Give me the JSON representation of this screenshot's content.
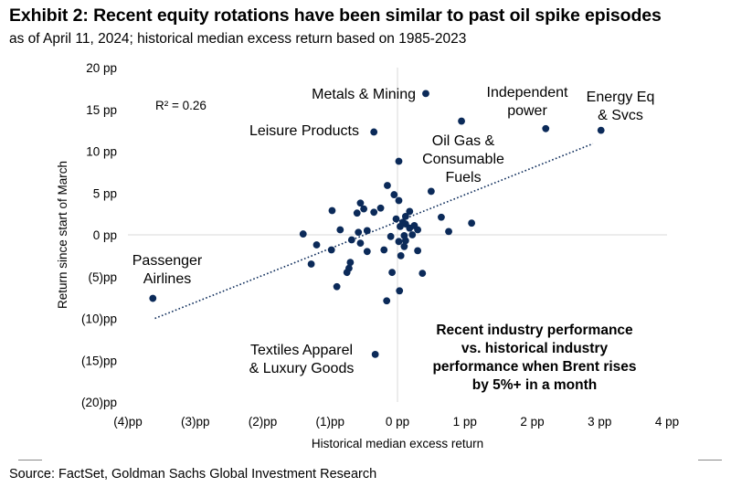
{
  "header": {
    "title": "Exhibit 2: Recent equity rotations have been similar to past oil spike episodes",
    "subtitle": "as of April 11, 2024; historical median excess return based on 1985-2023"
  },
  "footer": {
    "source": "Source: FactSet, Goldman Sachs Global Investment Research"
  },
  "colors": {
    "dot": "#0b2a59",
    "trendline": "#0b2a59",
    "axis": "#d9d9d9",
    "text": "#000000"
  },
  "chart_data": {
    "type": "scatter",
    "title": "Recent industry performance vs. historical industry performance when Brent rises by 5%+ in a month",
    "xlabel": "Historical median excess return",
    "ylabel": "Return since start of March",
    "xlim": [
      -4,
      4
    ],
    "ylim": [
      -20,
      20
    ],
    "x_ticks": [
      {
        "value": -4,
        "label": "(4)pp"
      },
      {
        "value": -3,
        "label": "(3)pp"
      },
      {
        "value": -2,
        "label": "(2)pp"
      },
      {
        "value": -1,
        "label": "(1)pp"
      },
      {
        "value": 0,
        "label": "0 pp"
      },
      {
        "value": 1,
        "label": "1 pp"
      },
      {
        "value": 2,
        "label": "2 pp"
      },
      {
        "value": 3,
        "label": "3 pp"
      },
      {
        "value": 4,
        "label": "4 pp"
      }
    ],
    "y_ticks": [
      {
        "value": 20,
        "label": "20 pp"
      },
      {
        "value": 15,
        "label": "15 pp"
      },
      {
        "value": 10,
        "label": "10 pp"
      },
      {
        "value": 5,
        "label": "5 pp"
      },
      {
        "value": 0,
        "label": "0 pp"
      },
      {
        "value": -5,
        "label": "(5)pp"
      },
      {
        "value": -10,
        "label": "(10)pp"
      },
      {
        "value": -15,
        "label": "(15)pp"
      },
      {
        "value": -20,
        "label": "(20)pp"
      }
    ],
    "r_squared_label": "R² = 0.26",
    "trendline": {
      "x": [
        -3.6,
        2.9
      ],
      "y": [
        -10.0,
        10.9
      ]
    },
    "labeled_points": [
      {
        "label": "Metals & Mining",
        "x": 0.42,
        "y": 16.9
      },
      {
        "label": "Independent power",
        "x": 2.2,
        "y": 12.7
      },
      {
        "label": "Energy Eq & Svcs",
        "x": 3.02,
        "y": 12.5
      },
      {
        "label": "Leisure Products",
        "x": -0.35,
        "y": 12.3
      },
      {
        "label": "Oil Gas & Consumable Fuels",
        "x": 0.95,
        "y": 13.6
      },
      {
        "label": "Passenger Airlines",
        "x": -3.63,
        "y": -7.6
      },
      {
        "label": "Textiles Apparel & Luxury Goods",
        "x": -0.33,
        "y": -14.3
      }
    ],
    "points": [
      {
        "x": 0.02,
        "y": 8.8
      },
      {
        "x": 0.5,
        "y": 5.2
      },
      {
        "x": -0.15,
        "y": 5.9
      },
      {
        "x": -0.05,
        "y": 4.8
      },
      {
        "x": 0.02,
        "y": 4.1
      },
      {
        "x": -0.55,
        "y": 3.8
      },
      {
        "x": -0.25,
        "y": 3.2
      },
      {
        "x": -0.5,
        "y": 3.1
      },
      {
        "x": -0.35,
        "y": 2.7
      },
      {
        "x": -0.6,
        "y": 2.6
      },
      {
        "x": -0.97,
        "y": 2.9
      },
      {
        "x": 0.18,
        "y": 2.8
      },
      {
        "x": 0.12,
        "y": 2.2
      },
      {
        "x": -0.02,
        "y": 1.9
      },
      {
        "x": 0.08,
        "y": 1.5
      },
      {
        "x": 0.12,
        "y": 1.3
      },
      {
        "x": 0.25,
        "y": 1.1
      },
      {
        "x": 0.04,
        "y": 1.0
      },
      {
        "x": 0.18,
        "y": 0.8
      },
      {
        "x": 0.3,
        "y": 0.6
      },
      {
        "x": 0.65,
        "y": 2.1
      },
      {
        "x": 1.1,
        "y": 1.4
      },
      {
        "x": 0.76,
        "y": 0.4
      },
      {
        "x": -0.45,
        "y": 0.5
      },
      {
        "x": -0.58,
        "y": 0.3
      },
      {
        "x": -0.85,
        "y": 0.6
      },
      {
        "x": -1.4,
        "y": 0.1
      },
      {
        "x": 0.1,
        "y": -0.1
      },
      {
        "x": 0.22,
        "y": 0.0
      },
      {
        "x": -0.1,
        "y": -0.2
      },
      {
        "x": -0.68,
        "y": -0.6
      },
      {
        "x": -0.55,
        "y": -1.0
      },
      {
        "x": -1.2,
        "y": -1.2
      },
      {
        "x": 0.02,
        "y": -0.8
      },
      {
        "x": 0.12,
        "y": -0.7
      },
      {
        "x": 0.1,
        "y": -1.4
      },
      {
        "x": -0.2,
        "y": -1.8
      },
      {
        "x": -0.98,
        "y": -1.8
      },
      {
        "x": 0.3,
        "y": -1.9
      },
      {
        "x": -0.45,
        "y": -2.0
      },
      {
        "x": 0.05,
        "y": -2.5
      },
      {
        "x": -0.7,
        "y": -3.3
      },
      {
        "x": -1.28,
        "y": -3.5
      },
      {
        "x": -0.72,
        "y": -4.0
      },
      {
        "x": -0.75,
        "y": -4.5
      },
      {
        "x": -0.08,
        "y": -4.5
      },
      {
        "x": 0.37,
        "y": -4.6
      },
      {
        "x": -0.9,
        "y": -6.2
      },
      {
        "x": 0.03,
        "y": -6.7
      },
      {
        "x": -0.16,
        "y": -7.9
      }
    ],
    "annotations": [
      {
        "name": "metals-mining",
        "lines": [
          "Metals & Mining"
        ]
      },
      {
        "name": "independent-power",
        "lines": [
          "Independent",
          "power"
        ]
      },
      {
        "name": "energy-eq-svcs",
        "lines": [
          "Energy Eq",
          "& Svcs"
        ]
      },
      {
        "name": "leisure-products",
        "lines": [
          "Leisure Products"
        ]
      },
      {
        "name": "oil-gas-fuels",
        "lines": [
          "Oil Gas &",
          "Consumable",
          "Fuels"
        ]
      },
      {
        "name": "passenger-airlines",
        "lines": [
          "Passenger",
          "Airlines"
        ]
      },
      {
        "name": "textiles-apparel",
        "lines": [
          "Textiles Apparel",
          "& Luxury Goods"
        ]
      }
    ],
    "callout": [
      "Recent industry performance",
      "vs. historical industry",
      "performance when Brent rises",
      "by 5%+ in a month"
    ]
  }
}
